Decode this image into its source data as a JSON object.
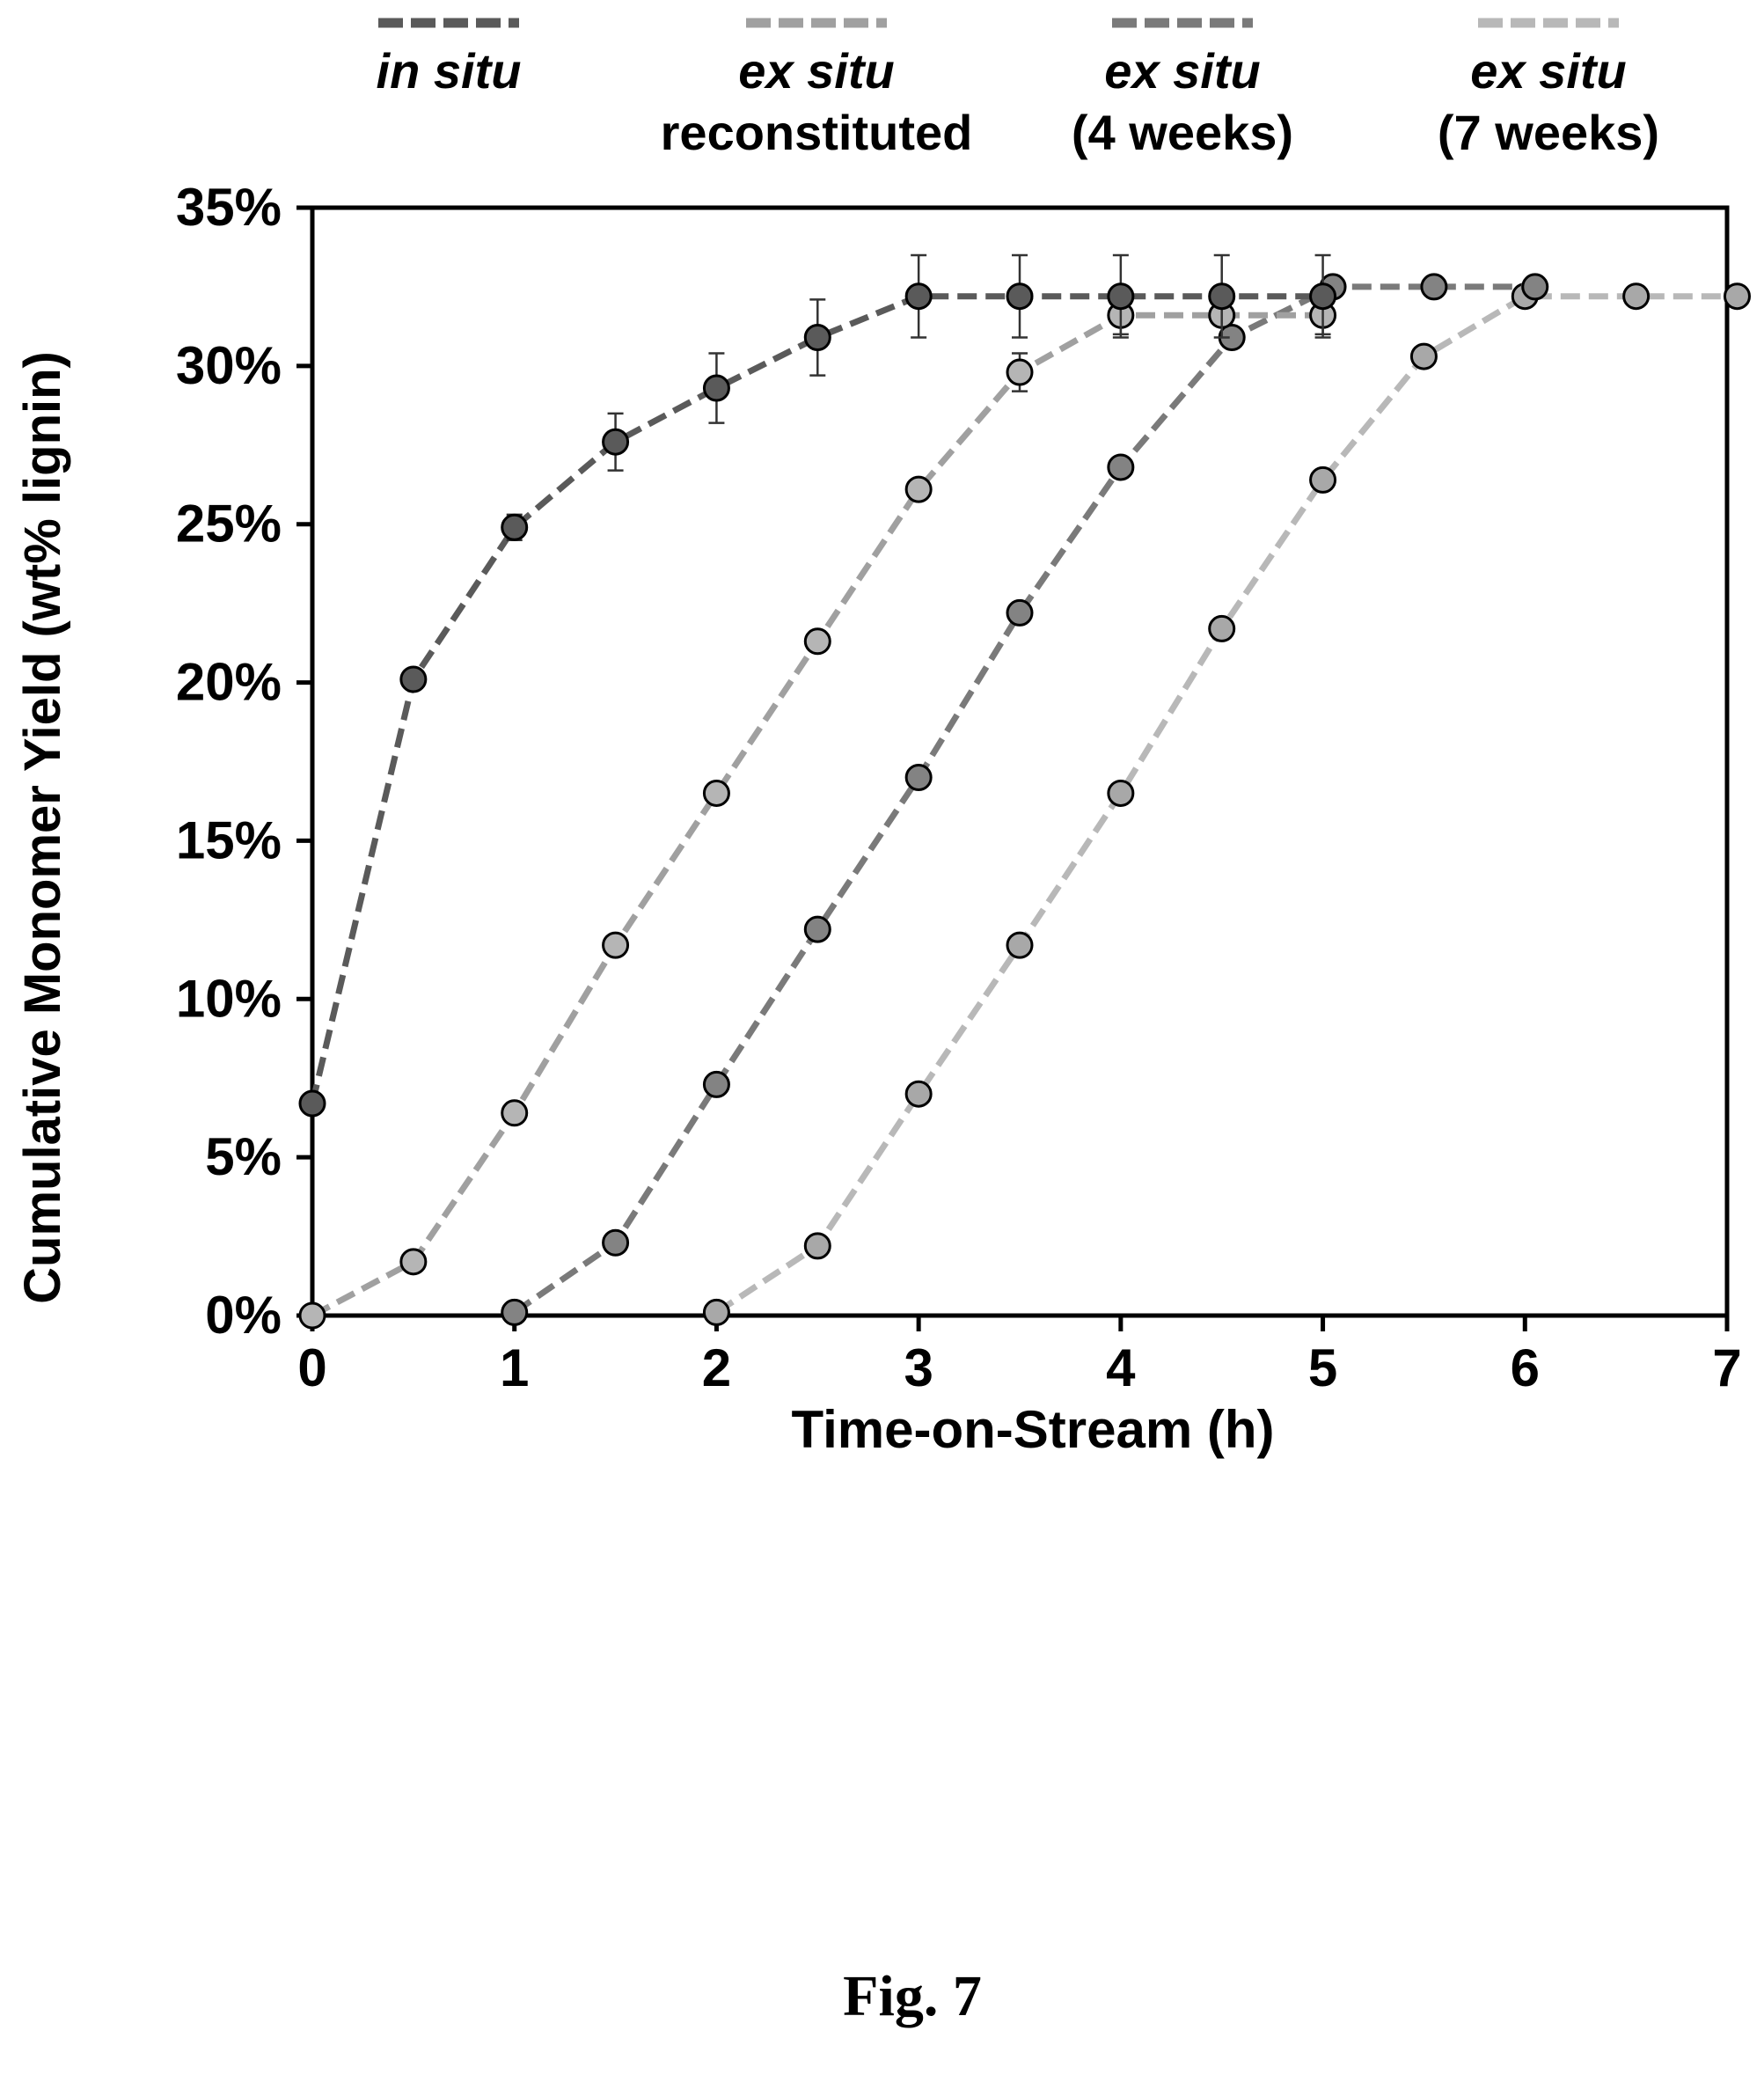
{
  "chart_data": {
    "type": "scatter",
    "xlabel": "Time-on-Stream (h)",
    "ylabel": "Cumulative Monomer Yield (wt% lignin)",
    "xlim": [
      0,
      7
    ],
    "ylim": [
      0,
      0.35
    ],
    "xticks": [
      "0",
      "1",
      "2",
      "3",
      "4",
      "5",
      "6",
      "7"
    ],
    "yticks": [
      "0%",
      "5%",
      "10%",
      "15%",
      "20%",
      "25%",
      "30%",
      "35%"
    ],
    "grid": false,
    "legend": "top",
    "series": [
      {
        "name": "in situ",
        "name_line2": "",
        "color": "#5a5a5a",
        "marker_fill": "#5a5a5a",
        "line_style": "dashed",
        "points": [
          {
            "x": 0,
            "y": 0.067
          },
          {
            "x": 0.5,
            "y": 0.201
          },
          {
            "x": 1,
            "y": 0.249,
            "err": 0.004
          },
          {
            "x": 1.5,
            "y": 0.276,
            "err": 0.009
          },
          {
            "x": 2,
            "y": 0.293,
            "err": 0.011
          },
          {
            "x": 2.5,
            "y": 0.309,
            "err": 0.012
          },
          {
            "x": 3,
            "y": 0.322,
            "err": 0.013
          },
          {
            "x": 3.5,
            "y": 0.322,
            "err": 0.013
          },
          {
            "x": 4,
            "y": 0.322,
            "err": 0.013
          },
          {
            "x": 4.5,
            "y": 0.322,
            "err": 0.013
          },
          {
            "x": 5,
            "y": 0.322,
            "err": 0.013
          }
        ]
      },
      {
        "name": "ex situ",
        "name_line2": "reconstituted",
        "color": "#a0a0a0",
        "marker_fill": "#b5b5b5",
        "line_style": "dashed",
        "points": [
          {
            "x": 0,
            "y": 0.0
          },
          {
            "x": 0.5,
            "y": 0.017
          },
          {
            "x": 1,
            "y": 0.064
          },
          {
            "x": 1.5,
            "y": 0.117
          },
          {
            "x": 2,
            "y": 0.165
          },
          {
            "x": 2.5,
            "y": 0.213
          },
          {
            "x": 3,
            "y": 0.261
          },
          {
            "x": 3.5,
            "y": 0.298,
            "err": 0.006
          },
          {
            "x": 4,
            "y": 0.316,
            "err": 0.006
          },
          {
            "x": 4.5,
            "y": 0.316
          },
          {
            "x": 5,
            "y": 0.316,
            "err": 0.006
          }
        ]
      },
      {
        "name": "ex situ",
        "name_line2": "(4 weeks)",
        "color": "#7a7a7a",
        "marker_fill": "#838383",
        "line_style": "dashed",
        "points": [
          {
            "x": 1,
            "y": 0.001
          },
          {
            "x": 1.5,
            "y": 0.023
          },
          {
            "x": 2,
            "y": 0.073
          },
          {
            "x": 2.5,
            "y": 0.122
          },
          {
            "x": 3,
            "y": 0.17
          },
          {
            "x": 3.5,
            "y": 0.222
          },
          {
            "x": 4,
            "y": 0.268
          },
          {
            "x": 4.55,
            "y": 0.309
          },
          {
            "x": 5.05,
            "y": 0.325
          },
          {
            "x": 5.55,
            "y": 0.325
          },
          {
            "x": 6.05,
            "y": 0.325
          }
        ]
      },
      {
        "name": "ex situ",
        "name_line2": "(7 weeks)",
        "color": "#b8b8b8",
        "marker_fill": "#a8a8a8",
        "line_style": "dashed",
        "points": [
          {
            "x": 2,
            "y": 0.001
          },
          {
            "x": 2.5,
            "y": 0.022
          },
          {
            "x": 3,
            "y": 0.07
          },
          {
            "x": 3.5,
            "y": 0.117
          },
          {
            "x": 4,
            "y": 0.165
          },
          {
            "x": 4.5,
            "y": 0.217
          },
          {
            "x": 5,
            "y": 0.264
          },
          {
            "x": 5.5,
            "y": 0.303
          },
          {
            "x": 6,
            "y": 0.322
          },
          {
            "x": 6.55,
            "y": 0.322
          },
          {
            "x": 7.05,
            "y": 0.322
          }
        ]
      }
    ]
  },
  "figure_caption": "Fig. 7"
}
